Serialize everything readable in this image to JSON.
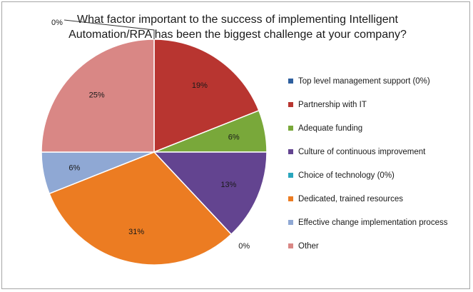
{
  "chart_data": {
    "type": "pie",
    "title_lines": [
      "What factor important to the success of implementing Intelligent",
      "Automation/RPA has been the biggest challenge at your company?"
    ],
    "slices": [
      {
        "label": "Top level management support (0%)",
        "value": 0,
        "display": "0%",
        "color": "#2e5f9e"
      },
      {
        "label": "Partnership with IT",
        "value": 19,
        "display": "19%",
        "color": "#b83530"
      },
      {
        "label": "Adequate funding",
        "value": 6,
        "display": "6%",
        "color": "#79a83a"
      },
      {
        "label": "Culture of continuous improvement",
        "value": 13,
        "display": "13%",
        "color": "#634490"
      },
      {
        "label": "Choice of technology (0%)",
        "value": 0,
        "display": "0%",
        "color": "#2aa6bd"
      },
      {
        "label": "Dedicated, trained resources",
        "value": 31,
        "display": "31%",
        "color": "#ec7c22"
      },
      {
        "label": "Effective change implementation process",
        "value": 6,
        "display": "6%",
        "color": "#8fa8d4"
      },
      {
        "label": "Other",
        "value": 25,
        "display": "25%",
        "color": "#d98785"
      }
    ],
    "legend_position": "right"
  }
}
